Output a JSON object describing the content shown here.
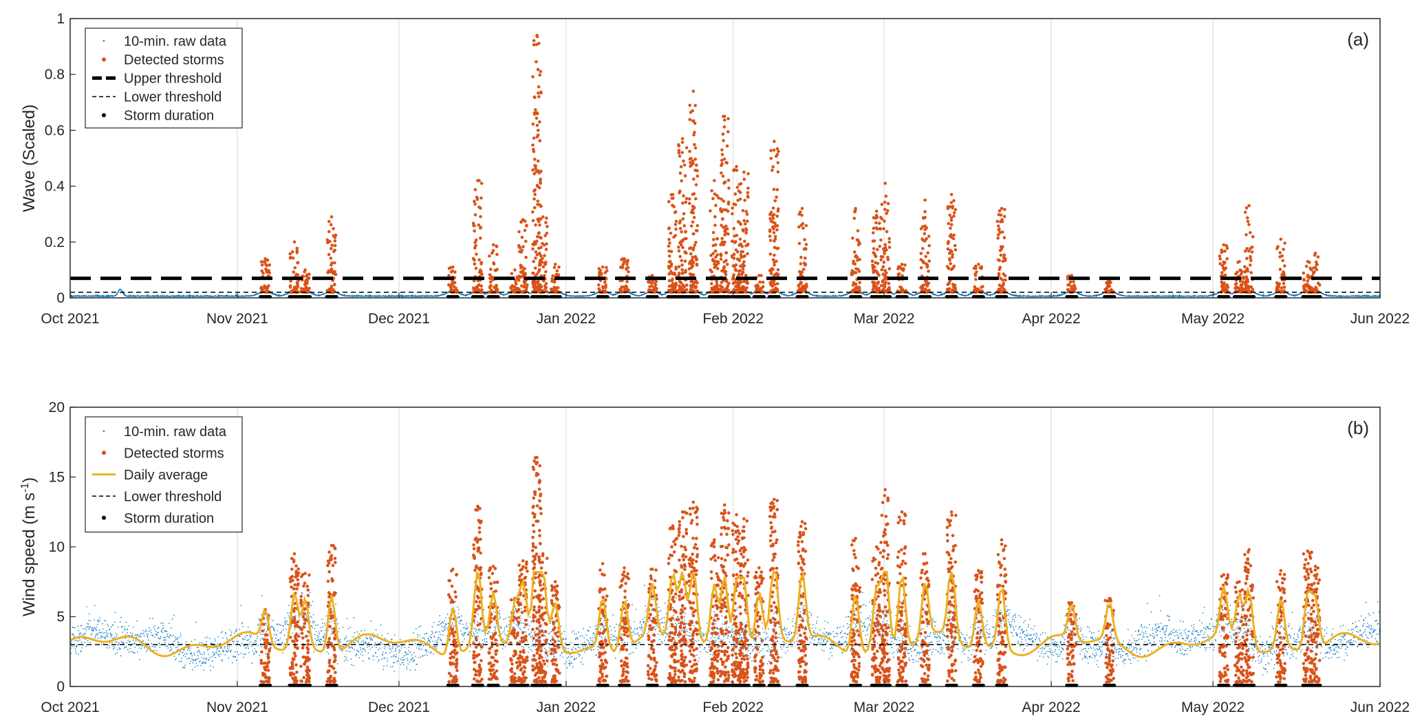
{
  "chart_data": [
    {
      "panel": "(a)",
      "type": "scatter",
      "ylabel": "Wave (Scaled)",
      "ylim": [
        0,
        1
      ],
      "yticks": [
        "0",
        "0.2",
        "0.4",
        "0.6",
        "0.8",
        "1"
      ],
      "xlim": [
        "2021-10-01",
        "2022-06-01"
      ],
      "xticks": [
        "Oct 2021",
        "Nov 2021",
        "Dec 2021",
        "Jan 2022",
        "Feb 2022",
        "Mar 2022",
        "Apr 2022",
        "May 2022",
        "Jun 2022"
      ],
      "grid": "vertical",
      "legend_position": "top-left",
      "legend": [
        "10-min. raw data",
        "Detected storms",
        "Upper threshold",
        "Lower threshold",
        "Storm duration"
      ],
      "thresholds": {
        "upper": 0.07,
        "lower": 0.02
      },
      "colors": {
        "raw": "#0072bd",
        "storm": "#d95319",
        "threshold": "#000000"
      },
      "storm_events": [
        {
          "day": 36.2,
          "peak": 0.14
        },
        {
          "day": 41.6,
          "peak": 0.2
        },
        {
          "day": 43.6,
          "peak": 0.1
        },
        {
          "day": 48.5,
          "peak": 0.29
        },
        {
          "day": 71.0,
          "peak": 0.11
        },
        {
          "day": 75.6,
          "peak": 0.42
        },
        {
          "day": 78.5,
          "peak": 0.19
        },
        {
          "day": 82.5,
          "peak": 0.1
        },
        {
          "day": 84.0,
          "peak": 0.28
        },
        {
          "day": 86.6,
          "peak": 0.94
        },
        {
          "day": 87.7,
          "peak": 0.29
        },
        {
          "day": 90.0,
          "peak": 0.12
        },
        {
          "day": 98.8,
          "peak": 0.11
        },
        {
          "day": 102.8,
          "peak": 0.14
        },
        {
          "day": 108.0,
          "peak": 0.08
        },
        {
          "day": 111.8,
          "peak": 0.37
        },
        {
          "day": 113.6,
          "peak": 0.57
        },
        {
          "day": 115.6,
          "peak": 0.74
        },
        {
          "day": 119.5,
          "peak": 0.42
        },
        {
          "day": 121.4,
          "peak": 0.65
        },
        {
          "day": 123.6,
          "peak": 0.47
        },
        {
          "day": 125.0,
          "peak": 0.45
        },
        {
          "day": 127.8,
          "peak": 0.08
        },
        {
          "day": 130.6,
          "peak": 0.56
        },
        {
          "day": 135.8,
          "peak": 0.32
        },
        {
          "day": 145.7,
          "peak": 0.32
        },
        {
          "day": 149.6,
          "peak": 0.31
        },
        {
          "day": 151.2,
          "peak": 0.41
        },
        {
          "day": 154.3,
          "peak": 0.12
        },
        {
          "day": 158.6,
          "peak": 0.35
        },
        {
          "day": 163.5,
          "peak": 0.37
        },
        {
          "day": 168.5,
          "peak": 0.12
        },
        {
          "day": 172.8,
          "peak": 0.32
        },
        {
          "day": 185.8,
          "peak": 0.08
        },
        {
          "day": 192.8,
          "peak": 0.06
        },
        {
          "day": 214.0,
          "peak": 0.19
        },
        {
          "day": 216.9,
          "peak": 0.13
        },
        {
          "day": 218.7,
          "peak": 0.33
        },
        {
          "day": 224.6,
          "peak": 0.21
        },
        {
          "day": 229.6,
          "peak": 0.13
        },
        {
          "day": 231.0,
          "peak": 0.16
        }
      ]
    },
    {
      "panel": "(b)",
      "type": "scatter",
      "ylabel": "Wind speed (m s",
      "ylabel_sup": "-1",
      "ylabel_end": ")",
      "ylim": [
        0,
        20
      ],
      "yticks": [
        "0",
        "5",
        "10",
        "15",
        "20"
      ],
      "xlim": [
        "2021-10-01",
        "2022-06-01"
      ],
      "xticks": [
        "Oct 2021",
        "Nov 2021",
        "Dec 2021",
        "Jan 2022",
        "Feb 2022",
        "Mar 2022",
        "Apr 2022",
        "May 2022",
        "Jun 2022"
      ],
      "grid": "vertical",
      "legend_position": "top-left",
      "legend": [
        "10-min. raw data",
        "Detected storms",
        "Daily average",
        "Lower threshold",
        "Storm duration"
      ],
      "thresholds": {
        "lower": 3.0
      },
      "colors": {
        "raw": "#0072bd",
        "storm": "#d95319",
        "daily": "#edb120",
        "threshold": "#000000"
      },
      "storm_events": [
        {
          "day": 36.2,
          "peak": 5.5
        },
        {
          "day": 41.6,
          "peak": 9.5
        },
        {
          "day": 43.6,
          "peak": 8.1
        },
        {
          "day": 48.5,
          "peak": 10.1
        },
        {
          "day": 71.0,
          "peak": 8.4
        },
        {
          "day": 75.6,
          "peak": 12.9
        },
        {
          "day": 78.5,
          "peak": 8.6
        },
        {
          "day": 82.5,
          "peak": 6.3
        },
        {
          "day": 84.0,
          "peak": 9.0
        },
        {
          "day": 86.6,
          "peak": 16.4
        },
        {
          "day": 87.7,
          "peak": 9.5
        },
        {
          "day": 90.0,
          "peak": 7.5
        },
        {
          "day": 98.8,
          "peak": 8.8
        },
        {
          "day": 102.8,
          "peak": 8.5
        },
        {
          "day": 108.0,
          "peak": 8.4
        },
        {
          "day": 111.8,
          "peak": 11.5
        },
        {
          "day": 113.6,
          "peak": 12.5
        },
        {
          "day": 115.6,
          "peak": 13.2
        },
        {
          "day": 119.5,
          "peak": 10.5
        },
        {
          "day": 121.4,
          "peak": 13.0
        },
        {
          "day": 123.6,
          "peak": 12.3
        },
        {
          "day": 125.0,
          "peak": 12.0
        },
        {
          "day": 127.8,
          "peak": 8.5
        },
        {
          "day": 130.6,
          "peak": 13.4
        },
        {
          "day": 135.8,
          "peak": 11.8
        },
        {
          "day": 145.7,
          "peak": 10.6
        },
        {
          "day": 149.6,
          "peak": 10.0
        },
        {
          "day": 151.2,
          "peak": 14.1
        },
        {
          "day": 154.3,
          "peak": 12.5
        },
        {
          "day": 158.6,
          "peak": 9.5
        },
        {
          "day": 163.5,
          "peak": 12.5
        },
        {
          "day": 168.5,
          "peak": 8.3
        },
        {
          "day": 172.8,
          "peak": 10.5
        },
        {
          "day": 185.8,
          "peak": 6.0
        },
        {
          "day": 192.8,
          "peak": 6.3
        },
        {
          "day": 214.0,
          "peak": 8.0
        },
        {
          "day": 216.9,
          "peak": 7.5
        },
        {
          "day": 218.7,
          "peak": 9.8
        },
        {
          "day": 224.6,
          "peak": 8.3
        },
        {
          "day": 229.6,
          "peak": 9.7
        },
        {
          "day": 231.0,
          "peak": 8.6
        }
      ]
    }
  ]
}
